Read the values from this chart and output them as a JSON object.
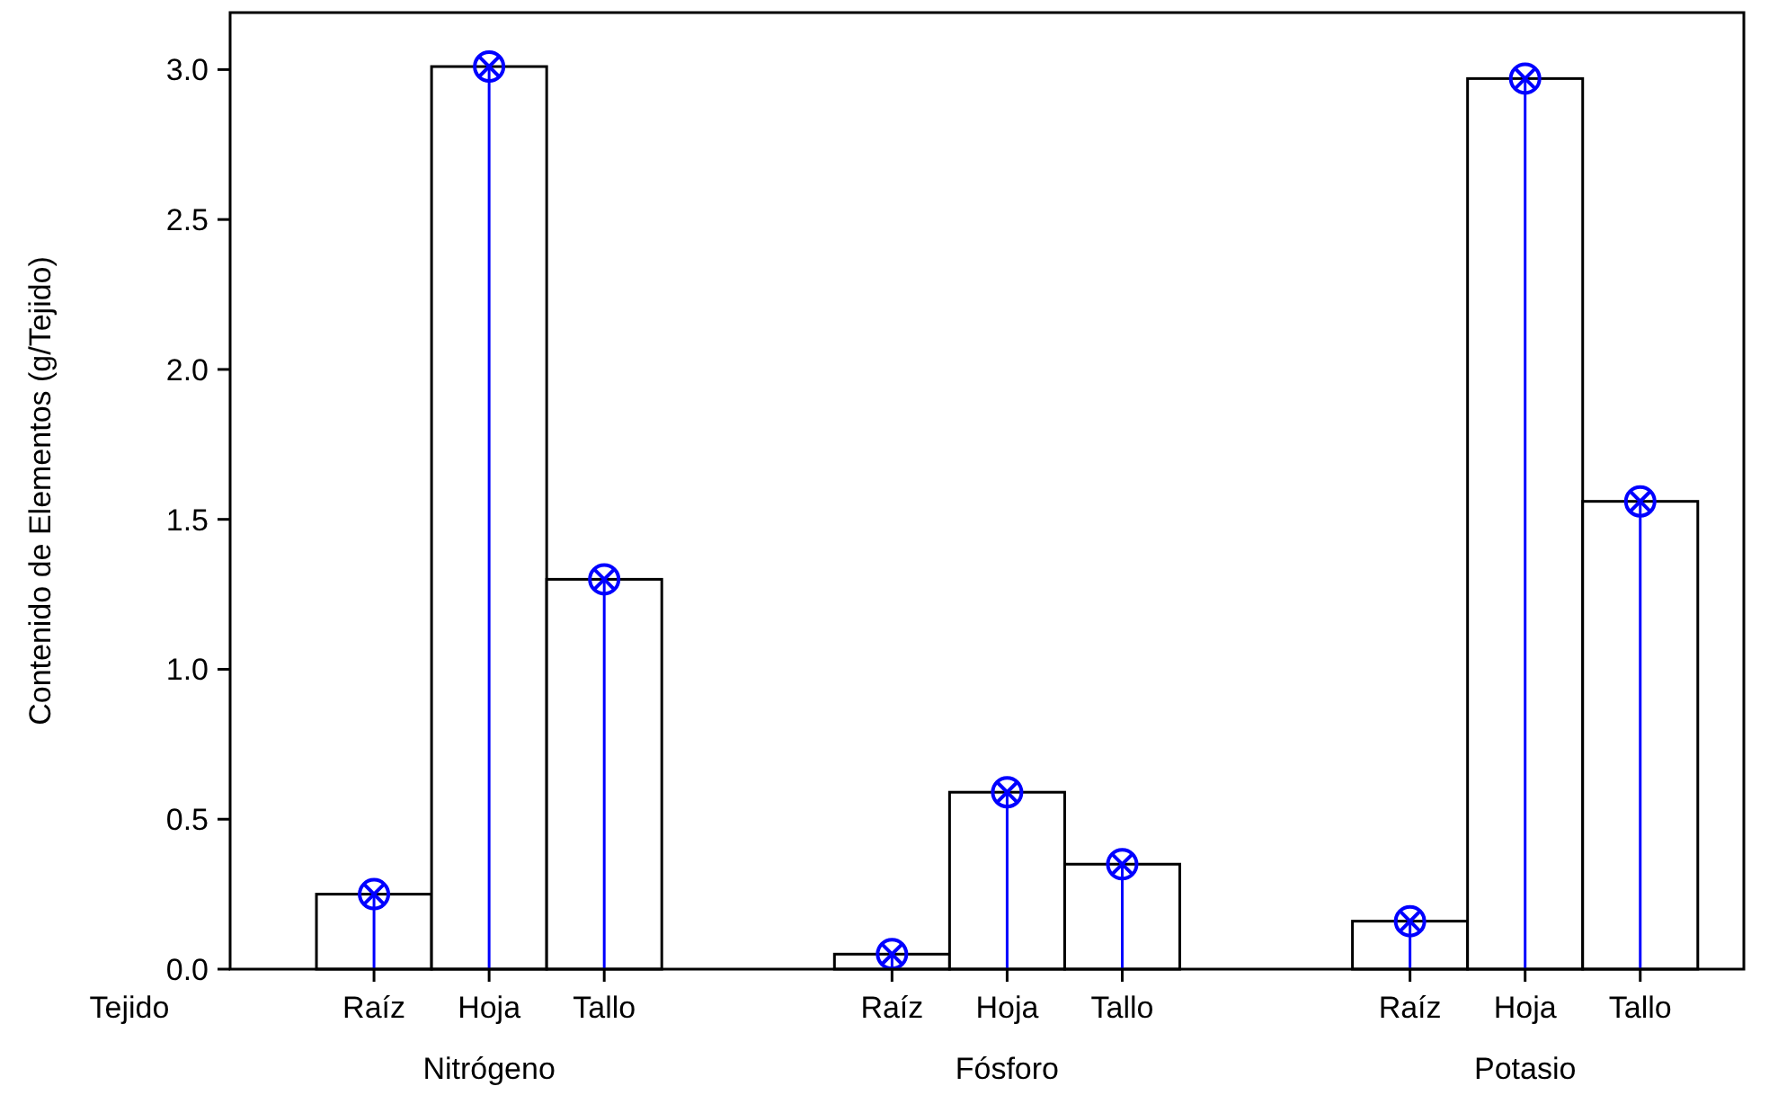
{
  "chart_data": {
    "type": "bar",
    "xlabel": "Tejido",
    "ylabel": "Contenido de Elementos (g/Tejido)",
    "categories": [
      "Raíz",
      "Hoja",
      "Tallo",
      "Raíz",
      "Hoja",
      "Tallo",
      "Raíz",
      "Hoja",
      "Tallo"
    ],
    "annotations": [
      "Nitrógeno",
      "Fósforo",
      "Potasio"
    ],
    "series": [
      {
        "color": "#ffffff",
        "values": [
          0.25,
          3.01,
          1.3,
          0.05,
          0.59,
          0.35,
          0.16,
          2.97,
          1.56
        ]
      },
      {
        "type": "lollipop",
        "color": "#0000ff",
        "marker": "circle",
        "values": [
          0.25,
          3.01,
          1.3,
          0.05,
          0.59,
          0.35,
          0.16,
          2.97,
          1.56
        ]
      }
    ],
    "ylim": [
      0,
      3.19
    ],
    "yticks": [
      {
        "value": 0,
        "label": "0.0"
      },
      {
        "value": 0.5,
        "label": "0.5"
      },
      {
        "value": 1,
        "label": "1.0"
      },
      {
        "value": 1.5,
        "label": "1.5"
      },
      {
        "value": 2,
        "label": "2.0"
      },
      {
        "value": 2.5,
        "label": "2.5"
      },
      {
        "value": 3,
        "label": "3.0"
      }
    ]
  }
}
